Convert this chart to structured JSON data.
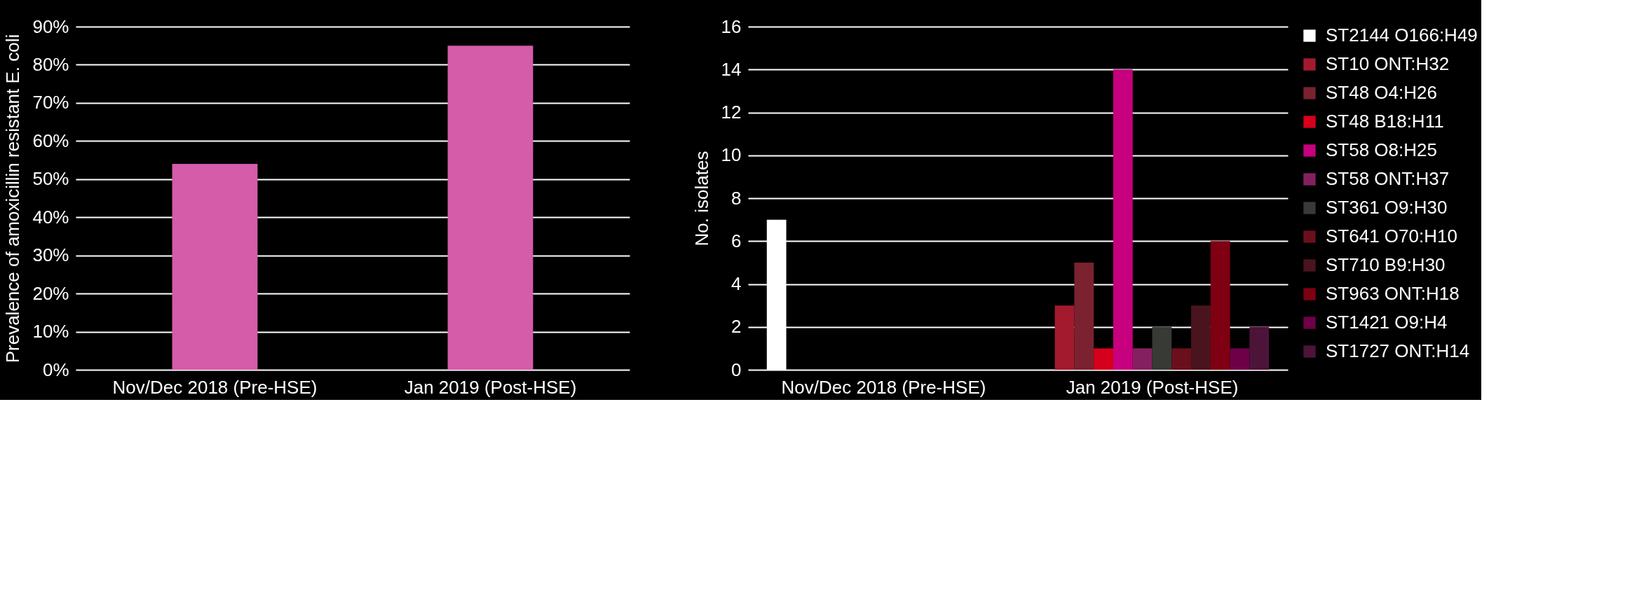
{
  "chart_data": [
    {
      "type": "bar",
      "ylabel": "Prevalence of amoxicillin resistant E. coli",
      "categories": [
        "Nov/Dec 2018 (Pre-HSE)",
        "Jan 2019 (Post-HSE)"
      ],
      "values": [
        54,
        85
      ],
      "color": "#d45ca8",
      "ylim": [
        0,
        90
      ],
      "yticks": [
        {
          "value": 0,
          "label": "0%"
        },
        {
          "value": 10,
          "label": "10%"
        },
        {
          "value": 20,
          "label": "20%"
        },
        {
          "value": 30,
          "label": "30%"
        },
        {
          "value": 40,
          "label": "40%"
        },
        {
          "value": 50,
          "label": "50%"
        },
        {
          "value": 60,
          "label": "60%"
        },
        {
          "value": 70,
          "label": "70%"
        },
        {
          "value": 80,
          "label": "80%"
        },
        {
          "value": 90,
          "label": "90%"
        }
      ],
      "grid": "y",
      "legend": false
    },
    {
      "type": "bar",
      "ylabel": "No. isolates",
      "categories": [
        "Nov/Dec 2018 (Pre-HSE)",
        "Jan 2019 (Post-HSE)"
      ],
      "ylim": [
        0,
        16
      ],
      "yticks": [
        0,
        2,
        4,
        6,
        8,
        10,
        12,
        14,
        16
      ],
      "grid": "y",
      "legend": "right",
      "series": [
        {
          "name": "ST2144 O166:H49",
          "color": "#ffffff",
          "values": [
            7,
            null
          ]
        },
        {
          "name": "ST10 ONT:H32",
          "color": "#a31a2e",
          "values": [
            null,
            3
          ]
        },
        {
          "name": "ST48 O4:H26",
          "color": "#7a2230",
          "values": [
            null,
            5
          ]
        },
        {
          "name": "ST48 B18:H11",
          "color": "#d6001c",
          "values": [
            null,
            1
          ]
        },
        {
          "name": "ST58 O8:H25",
          "color": "#c6007e",
          "values": [
            null,
            14
          ]
        },
        {
          "name": "ST58 ONT:H37",
          "color": "#852060",
          "values": [
            null,
            1
          ]
        },
        {
          "name": "ST361 O9:H30",
          "color": "#383a35",
          "values": [
            null,
            2
          ]
        },
        {
          "name": "ST641 O70:H10",
          "color": "#6b0f1e",
          "values": [
            null,
            1
          ]
        },
        {
          "name": "ST710 B9:H30",
          "color": "#4a141e",
          "values": [
            null,
            3
          ]
        },
        {
          "name": "ST963 ONT:H18",
          "color": "#7e0012",
          "values": [
            null,
            6
          ]
        },
        {
          "name": "ST1421 O9:H4",
          "color": "#6e0048",
          "values": [
            null,
            1
          ]
        },
        {
          "name": "ST1727 ONT:H14",
          "color": "#4d1439",
          "values": [
            null,
            2
          ]
        }
      ]
    }
  ]
}
